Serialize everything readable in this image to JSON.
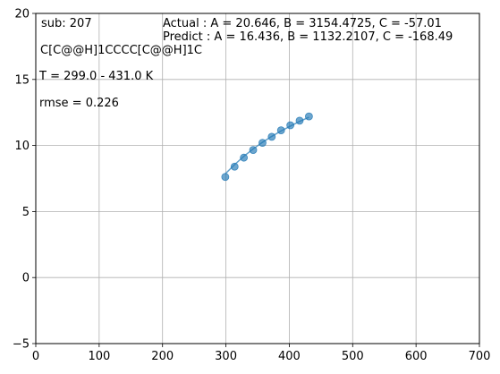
{
  "chart_data": {
    "type": "scatter",
    "xlim": [
      0,
      700
    ],
    "ylim": [
      -5,
      20
    ],
    "x_ticks": [
      0,
      100,
      200,
      300,
      400,
      500,
      600,
      700
    ],
    "y_ticks": [
      -5,
      0,
      5,
      10,
      15,
      20
    ],
    "grid": true,
    "annotations": {
      "sub": "sub: 207",
      "smiles": "C[C@@H]1CCCC[C@@H]1C",
      "temp_range": "T = 299.0 - 431.0 K",
      "rmse": "rmse = 0.226",
      "actual": "Actual  : A = 20.646, B = 3154.4725,  C = -57.01",
      "predict": "Predict : A = 16.436, B = 1132.2107,  C = -168.49"
    },
    "series": [
      {
        "kind": "points",
        "color": "#1f77b4",
        "x": [
          299,
          313.7,
          328.3,
          343,
          357.7,
          372.3,
          387,
          401.7,
          416.3,
          431
        ],
        "y": [
          7.62,
          8.4,
          9.08,
          9.66,
          10.2,
          10.66,
          11.15,
          11.53,
          11.88,
          12.2
        ]
      },
      {
        "kind": "line",
        "color": "#1f77b4",
        "x": [
          299,
          313.7,
          328.3,
          343,
          357.7,
          372.3,
          387,
          401.7,
          416.3,
          431
        ],
        "y": [
          7.85,
          8.55,
          9.18,
          9.74,
          10.24,
          10.69,
          11.1,
          11.47,
          11.82,
          12.14
        ]
      }
    ]
  }
}
